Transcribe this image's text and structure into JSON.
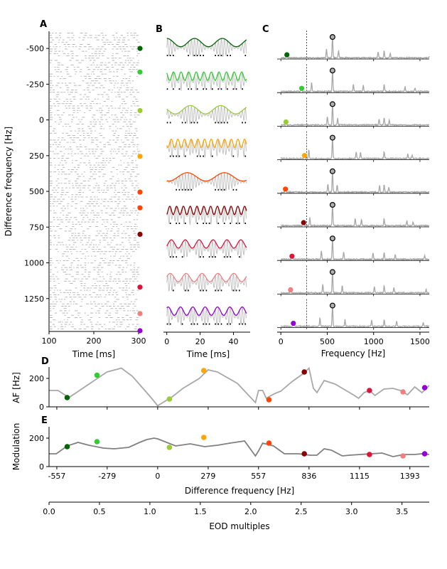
{
  "panels": {
    "A": {
      "label": "A",
      "xlabel": "Time [ms]",
      "ylabel": "Difference frequency [Hz]",
      "xticks": [
        "100",
        "200",
        "300"
      ],
      "yticks": [
        "-500",
        "-250",
        "0",
        "250",
        "500",
        "750",
        "1000",
        "1250"
      ]
    },
    "B": {
      "label": "B",
      "xlabel": "Time [ms]",
      "xticks": [
        "0",
        "20",
        "40"
      ]
    },
    "C": {
      "label": "C",
      "xlabel": "Frequency [Hz]",
      "xticks": [
        "0",
        "500",
        "1000",
        "1500"
      ]
    },
    "D": {
      "label": "D",
      "ylabel": "AF [Hz]",
      "yticks": [
        "0",
        "200"
      ]
    },
    "E": {
      "label": "E",
      "ylabel": "Modulation",
      "yticks": [
        "0",
        "200"
      ],
      "xlabel": "Difference frequency [Hz]",
      "xticks": [
        "-557",
        "-279",
        "0",
        "279",
        "557",
        "836",
        "1115",
        "1393"
      ]
    },
    "F": {
      "xlabel": "EOD multiples",
      "xticks": [
        "0.0",
        "0.5",
        "1.0",
        "1.5",
        "2.0",
        "2.5",
        "3.0",
        "3.5"
      ]
    }
  },
  "chart_data": [
    {
      "type": "scatter",
      "panel": "A",
      "xlabel": "Time [ms]",
      "ylabel": "Difference frequency [Hz]",
      "xlim": [
        100,
        300
      ],
      "ylim": [
        1480,
        -620
      ],
      "marker_df": [
        -500,
        -335,
        -65,
        255,
        505,
        615,
        800,
        1170,
        1355,
        1475
      ],
      "marker_colors": [
        "#006400",
        "#32cd32",
        "#9acd32",
        "#ffa500",
        "#ff4500",
        "#ff4500",
        "#8b0000",
        "#dc143c",
        "#f08080",
        "#9400d3"
      ]
    },
    {
      "type": "line",
      "panel": "B",
      "xlabel": "Time [ms]",
      "xlim": [
        -2,
        50
      ],
      "rows": [
        {
          "color": "#006400",
          "beat_freq": 60
        },
        {
          "color": "#32cd32",
          "beat_freq": 220
        },
        {
          "color": "#9acd32",
          "beat_freq": 55
        },
        {
          "color": "#ffa500",
          "beat_freq": 250
        },
        {
          "color": "#ff4500",
          "beat_freq": 45
        },
        {
          "color": "#8b0000",
          "beat_freq": 245
        },
        {
          "color": "#dc143c",
          "beat_freq": 120
        },
        {
          "color": "#f08080",
          "beat_freq": 105
        },
        {
          "color": "#9400d3",
          "beat_freq": 135
        }
      ]
    },
    {
      "type": "line",
      "panel": "C",
      "xlabel": "Frequency [Hz]",
      "xlim": [
        -40,
        1600
      ],
      "eod_frequency": 557,
      "dashed_line": 278,
      "rows": [
        {
          "color": "#006400",
          "af": 65
        },
        {
          "color": "#32cd32",
          "af": 225
        },
        {
          "color": "#9acd32",
          "af": 55
        },
        {
          "color": "#ffa500",
          "af": 255
        },
        {
          "color": "#ff4500",
          "af": 50
        },
        {
          "color": "#8b0000",
          "af": 245
        },
        {
          "color": "#dc143c",
          "af": 120
        },
        {
          "color": "#f08080",
          "af": 105
        },
        {
          "color": "#9400d3",
          "af": 135
        }
      ]
    },
    {
      "type": "line",
      "panel": "D",
      "ylabel": "AF [Hz]",
      "xlim": [
        -600,
        1500
      ],
      "ylim": [
        0,
        280
      ],
      "curve": {
        "x": [
          -600,
          -550,
          -490,
          -280,
          -200,
          -140,
          -40,
          0,
          80,
          140,
          230,
          279,
          330,
          440,
          540,
          557,
          580,
          600,
          620,
          650,
          680,
          740,
          800,
          836,
          860,
          880,
          920,
          980,
          1040,
          1080,
          1110,
          1140,
          1170,
          1200,
          1250,
          1300,
          1340,
          1380,
          1420,
          1460,
          1500
        ],
        "y": [
          115,
          115,
          65,
          245,
          272,
          215,
          70,
          8,
          70,
          130,
          200,
          260,
          245,
          165,
          30,
          115,
          115,
          60,
          75,
          95,
          110,
          175,
          230,
          272,
          130,
          100,
          185,
          160,
          115,
          85,
          60,
          100,
          115,
          80,
          125,
          130,
          115,
          85,
          140,
          100,
          150
        ]
      },
      "points": [
        {
          "x": -500,
          "y": 65,
          "color": "#006400"
        },
        {
          "x": -335,
          "y": 222,
          "color": "#32cd32"
        },
        {
          "x": 65,
          "y": 55,
          "color": "#9acd32"
        },
        {
          "x": 255,
          "y": 255,
          "color": "#ffa500"
        },
        {
          "x": 615,
          "y": 50,
          "color": "#ff4500"
        },
        {
          "x": 810,
          "y": 245,
          "color": "#8b0000"
        },
        {
          "x": 1170,
          "y": 115,
          "color": "#dc143c"
        },
        {
          "x": 1355,
          "y": 105,
          "color": "#f08080"
        },
        {
          "x": 1475,
          "y": 135,
          "color": "#9400d3"
        }
      ]
    },
    {
      "type": "line",
      "panel": "E",
      "ylabel": "Modulation",
      "xlabel": "Difference frequency [Hz]",
      "xlim": [
        -600,
        1500
      ],
      "ylim": [
        0,
        280
      ],
      "curve": {
        "x": [
          -600,
          -560,
          -500,
          -440,
          -380,
          -300,
          -240,
          -160,
          -100,
          -60,
          -20,
          0,
          40,
          100,
          180,
          260,
          330,
          400,
          480,
          540,
          557,
          580,
          640,
          700,
          780,
          840,
          880,
          920,
          960,
          1020,
          1060,
          1120,
          1180,
          1240,
          1300,
          1360,
          1420,
          1460,
          1500
        ],
        "y": [
          90,
          90,
          145,
          170,
          150,
          130,
          125,
          135,
          170,
          190,
          200,
          195,
          175,
          145,
          160,
          140,
          150,
          165,
          180,
          75,
          110,
          165,
          145,
          90,
          90,
          80,
          80,
          125,
          115,
          75,
          80,
          85,
          90,
          95,
          70,
          85,
          85,
          90,
          85
        ]
      },
      "points": [
        {
          "x": -500,
          "y": 140,
          "color": "#006400"
        },
        {
          "x": -335,
          "y": 175,
          "color": "#32cd32"
        },
        {
          "x": 65,
          "y": 135,
          "color": "#9acd32"
        },
        {
          "x": 255,
          "y": 205,
          "color": "#ffa500"
        },
        {
          "x": 615,
          "y": 165,
          "color": "#ff4500"
        },
        {
          "x": 810,
          "y": 90,
          "color": "#8b0000"
        },
        {
          "x": 1170,
          "y": 85,
          "color": "#dc143c"
        },
        {
          "x": 1355,
          "y": 75,
          "color": "#f08080"
        },
        {
          "x": 1475,
          "y": 90,
          "color": "#9400d3"
        }
      ]
    }
  ]
}
